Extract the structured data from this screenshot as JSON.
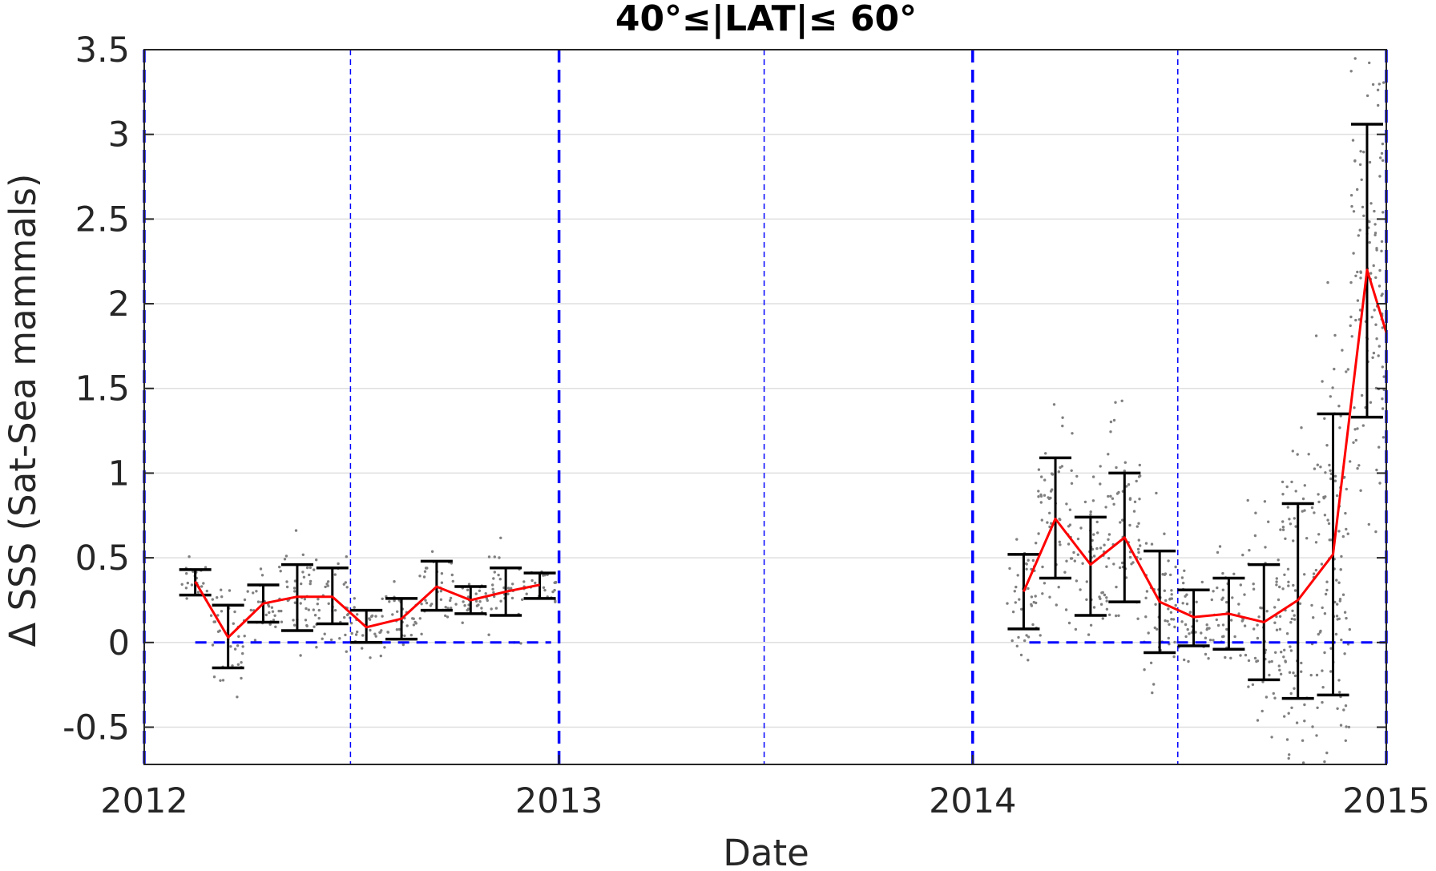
{
  "chart_data": {
    "type": "scatter",
    "title": "40°≤|LAT|≤ 60°",
    "xlabel": "Date",
    "ylabel": "Δ SSS (Sat-Sea mammals)",
    "xlim": [
      "2012-01-01",
      "2015-01-01"
    ],
    "ylim": [
      -0.72,
      3.5
    ],
    "xticks": [
      {
        "label": "2012",
        "date": "2012-01-01"
      },
      {
        "label": "2013",
        "date": "2013-01-01"
      },
      {
        "label": "2014",
        "date": "2014-01-01"
      },
      {
        "label": "2015",
        "date": "2015-01-01"
      }
    ],
    "yticks": [
      {
        "label": "-0.5",
        "value": -0.5
      },
      {
        "label": "0",
        "value": 0
      },
      {
        "label": "0.5",
        "value": 0.5
      },
      {
        "label": "1",
        "value": 1
      },
      {
        "label": "1.5",
        "value": 1.5
      },
      {
        "label": "2",
        "value": 2
      },
      {
        "label": "2.5",
        "value": 2.5
      },
      {
        "label": "3",
        "value": 3
      },
      {
        "label": "3.5",
        "value": 3.5
      }
    ],
    "grid": true,
    "colors": {
      "mean_line": "#ff0000",
      "error_bars": "#000000",
      "scatter": "#808080",
      "reference_lines": "#0000ff",
      "grid": "#dfdfdf"
    },
    "year_boundaries": [
      "2012-01-01",
      "2013-01-01",
      "2014-01-01",
      "2015-01-01"
    ],
    "mid_year_lines": [
      "2012-07-01",
      "2013-07-01",
      "2014-07-01"
    ],
    "zero_reference_segments": [
      {
        "start": "2012-02-15",
        "end": "2012-12-25",
        "y": 0
      },
      {
        "start": "2014-02-20",
        "end": "2015-01-01",
        "y": 0
      }
    ],
    "series": [
      {
        "points": [
          {
            "date": "2012-02-15",
            "mean": 0.36,
            "low": 0.28,
            "high": 0.43
          },
          {
            "date": "2012-03-15",
            "mean": 0.03,
            "low": -0.15,
            "high": 0.22
          },
          {
            "date": "2012-04-15",
            "mean": 0.23,
            "low": 0.12,
            "high": 0.34
          },
          {
            "date": "2012-05-15",
            "mean": 0.27,
            "low": 0.07,
            "high": 0.46
          },
          {
            "date": "2012-06-15",
            "mean": 0.27,
            "low": 0.11,
            "high": 0.44
          },
          {
            "date": "2012-07-15",
            "mean": 0.09,
            "low": 0.0,
            "high": 0.19
          },
          {
            "date": "2012-08-15",
            "mean": 0.14,
            "low": 0.02,
            "high": 0.26
          },
          {
            "date": "2012-09-15",
            "mean": 0.33,
            "low": 0.19,
            "high": 0.48
          },
          {
            "date": "2012-10-15",
            "mean": 0.25,
            "low": 0.17,
            "high": 0.33
          },
          {
            "date": "2012-11-15",
            "mean": 0.3,
            "low": 0.16,
            "high": 0.44
          },
          {
            "date": "2012-12-15",
            "mean": 0.34,
            "low": 0.26,
            "high": 0.41
          }
        ]
      },
      {
        "points": [
          {
            "date": "2014-02-15",
            "mean": 0.3,
            "low": 0.08,
            "high": 0.52
          },
          {
            "date": "2014-03-15",
            "mean": 0.73,
            "low": 0.38,
            "high": 1.09
          },
          {
            "date": "2014-04-15",
            "mean": 0.46,
            "low": 0.16,
            "high": 0.74
          },
          {
            "date": "2014-05-15",
            "mean": 0.62,
            "low": 0.24,
            "high": 1.0
          },
          {
            "date": "2014-06-15",
            "mean": 0.24,
            "low": -0.06,
            "high": 0.54
          },
          {
            "date": "2014-07-15",
            "mean": 0.15,
            "low": -0.02,
            "high": 0.31
          },
          {
            "date": "2014-08-15",
            "mean": 0.17,
            "low": -0.04,
            "high": 0.38
          },
          {
            "date": "2014-09-15",
            "mean": 0.12,
            "low": -0.22,
            "high": 0.46
          },
          {
            "date": "2014-10-15",
            "mean": 0.25,
            "low": -0.33,
            "high": 0.82
          },
          {
            "date": "2014-11-15",
            "mean": 0.52,
            "low": -0.31,
            "high": 1.35
          },
          {
            "date": "2014-12-15",
            "mean": 2.2,
            "low": 1.33,
            "high": 3.06
          },
          {
            "date": "2015-01-01",
            "mean": 1.83
          }
        ]
      }
    ]
  }
}
